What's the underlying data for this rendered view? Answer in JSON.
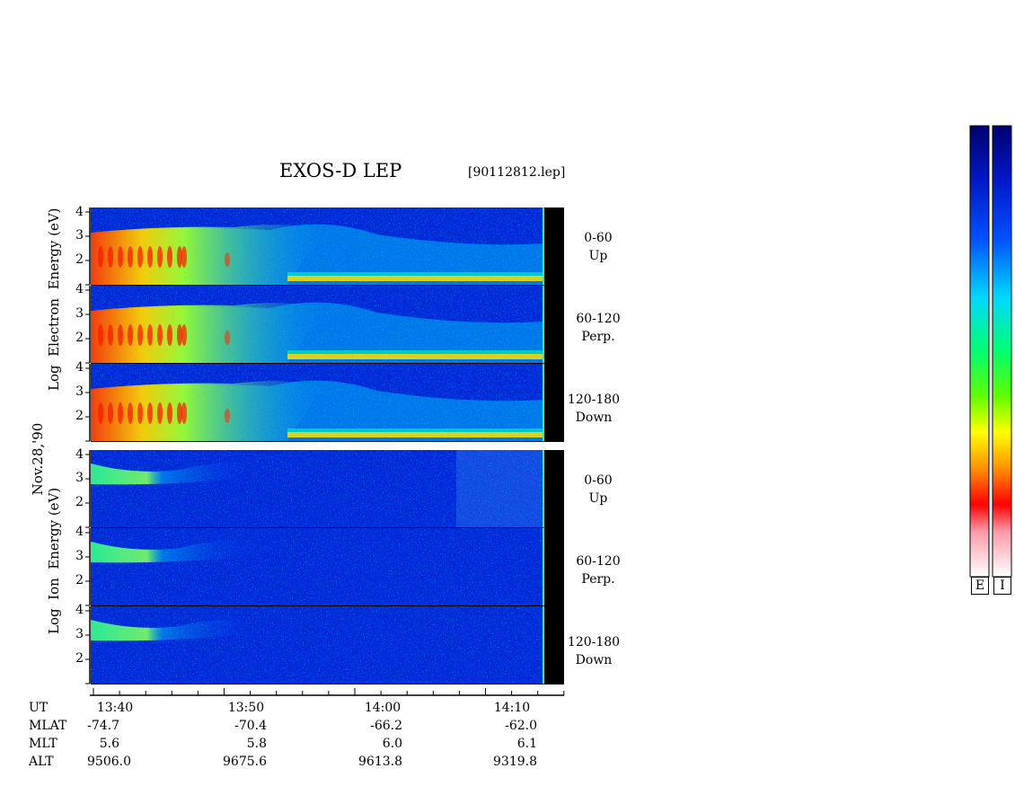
{
  "header": {
    "title": "EXOS-D LEP",
    "file": "[90112812.lep]"
  },
  "electron": {
    "ylabel_parts": [
      "Log",
      "Electron",
      "Energy",
      "(eV)"
    ],
    "panels": [
      {
        "angle": "0-60",
        "dir": "Up",
        "ticks": [
          "4",
          "3",
          "2"
        ]
      },
      {
        "angle": "60-120",
        "dir": "Perp.",
        "ticks": [
          "4",
          "3",
          "2"
        ]
      },
      {
        "angle": "120-180",
        "dir": "Down",
        "ticks": [
          "4",
          "3",
          "2"
        ]
      }
    ]
  },
  "ion": {
    "ylabel_parts": [
      "Log",
      "Ion",
      "Energy",
      "(eV)"
    ],
    "panels": [
      {
        "angle": "0-60",
        "dir": "Up",
        "ticks": [
          "4",
          "3",
          "2"
        ]
      },
      {
        "angle": "60-120",
        "dir": "Perp.",
        "ticks": [
          "4",
          "3",
          "2"
        ]
      },
      {
        "angle": "120-180",
        "dir": "Down",
        "ticks": [
          "4",
          "3",
          "2"
        ]
      }
    ]
  },
  "date_label": "Nov.28,'90",
  "axis": {
    "row_labels": [
      "UT",
      "MLAT",
      "MLT",
      "ALT"
    ],
    "columns": [
      {
        "ut": "13:40",
        "mlat": "-74.7",
        "mlt": "5.6",
        "alt": "9506.0"
      },
      {
        "ut": "13:50",
        "mlat": "-70.4",
        "mlt": "5.8",
        "alt": "9675.6"
      },
      {
        "ut": "14:00",
        "mlat": "-66.2",
        "mlt": "6.0",
        "alt": "9613.8"
      },
      {
        "ut": "14:10",
        "mlat": "-62.0",
        "mlt": "6.1",
        "alt": "9319.8"
      }
    ]
  },
  "colorbar": {
    "labels": [
      "E",
      "I"
    ],
    "colors": [
      "#fde6ec",
      "#ff0000",
      "#ff9000",
      "#ffff00",
      "#00ff00",
      "#00ffff",
      "#0060ff",
      "#00007a"
    ]
  },
  "chart_data": {
    "type": "heatmap",
    "title": "EXOS-D LEP",
    "x": [
      "13:40",
      "13:50",
      "14:00",
      "14:10"
    ],
    "ylabel_electron": "Log Electron Energy (eV)",
    "ylabel_ion": "Log Ion Energy (eV)",
    "ylim": [
      1,
      4.2
    ],
    "yticks": [
      2,
      3,
      4
    ],
    "panels": [
      "0-60 Up",
      "60-120 Perp.",
      "120-180 Down"
    ]
  }
}
